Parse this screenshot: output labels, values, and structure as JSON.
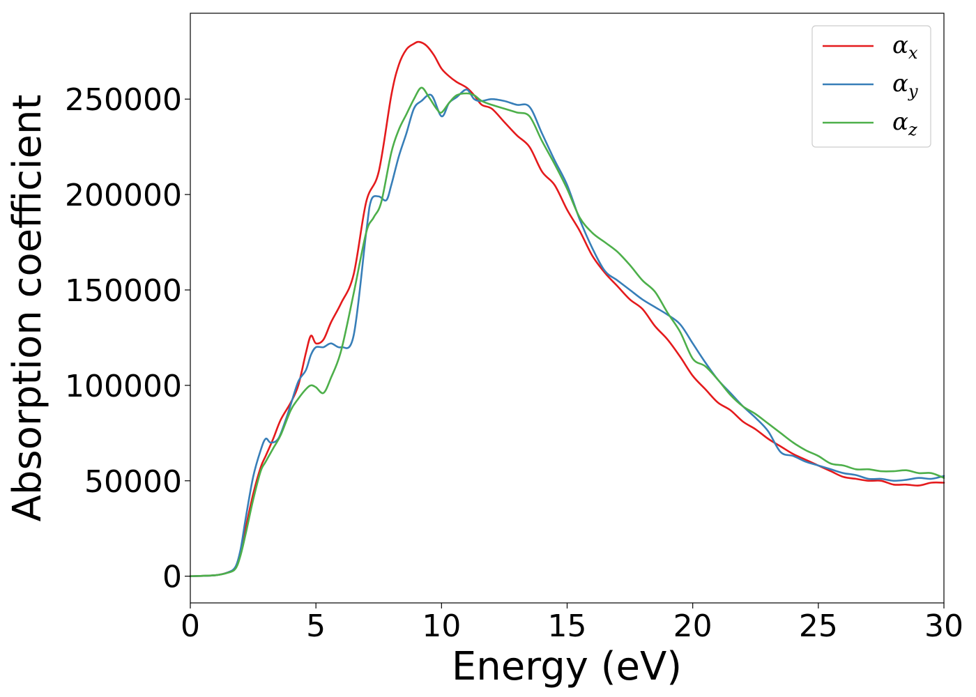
{
  "chart_data": {
    "type": "line",
    "title": "",
    "xlabel": "Energy (eV)",
    "ylabel": "Absorption coefficient",
    "xlim": [
      0,
      30
    ],
    "ylim": [
      -14000,
      295000
    ],
    "xticks": [
      0,
      5,
      10,
      15,
      20,
      25,
      30
    ],
    "xtick_labels": [
      "0",
      "5",
      "10",
      "15",
      "20",
      "25",
      "30"
    ],
    "yticks": [
      0,
      50000,
      100000,
      150000,
      200000,
      250000
    ],
    "ytick_labels": [
      "0",
      "50000",
      "100000",
      "150000",
      "200000",
      "250000"
    ],
    "grid": false,
    "legend_position": "top-right",
    "series": [
      {
        "name": "α",
        "subscript": "x",
        "color": "#e41a1c",
        "x": [
          0,
          1,
          1.5,
          1.8,
          2.0,
          2.2,
          2.5,
          2.8,
          3.0,
          3.3,
          3.6,
          4.0,
          4.3,
          4.6,
          4.8,
          5.0,
          5.3,
          5.6,
          6.0,
          6.5,
          7.0,
          7.5,
          8.0,
          8.3,
          8.6,
          8.9,
          9.1,
          9.4,
          9.7,
          10.0,
          10.3,
          10.6,
          11.0,
          11.3,
          11.6,
          12.0,
          12.5,
          13.0,
          13.5,
          14.0,
          14.5,
          15.0,
          15.5,
          16.0,
          16.5,
          17.0,
          17.5,
          18.0,
          18.5,
          19.0,
          19.5,
          20.0,
          20.5,
          21.0,
          21.5,
          22.0,
          22.5,
          23.0,
          23.5,
          24.0,
          24.5,
          25.0,
          25.5,
          26.0,
          26.5,
          27.0,
          27.5,
          28.0,
          28.5,
          29.0,
          29.5,
          30.0
        ],
        "values": [
          0,
          500,
          2000,
          4500,
          12000,
          25000,
          43000,
          57000,
          63000,
          72000,
          82000,
          91000,
          100000,
          117000,
          126000,
          122000,
          124000,
          133000,
          143000,
          158000,
          196000,
          212000,
          252000,
          268000,
          276000,
          279000,
          280000,
          278000,
          273000,
          266000,
          262000,
          259000,
          256000,
          252000,
          247000,
          245000,
          238000,
          231000,
          225000,
          212000,
          205000,
          192000,
          181000,
          168000,
          159000,
          152000,
          145000,
          140000,
          131000,
          124000,
          115000,
          105000,
          98000,
          91000,
          87000,
          81000,
          77000,
          72000,
          68000,
          64000,
          61000,
          58000,
          55000,
          52000,
          51000,
          50000,
          50000,
          48000,
          48000,
          47500,
          49000,
          49000
        ]
      },
      {
        "name": "α",
        "subscript": "y",
        "color": "#377eb8",
        "x": [
          0,
          1,
          1.5,
          1.8,
          2.0,
          2.2,
          2.5,
          2.8,
          3.0,
          3.2,
          3.5,
          3.8,
          4.0,
          4.3,
          4.6,
          4.8,
          5.0,
          5.3,
          5.6,
          6.0,
          6.5,
          7.0,
          7.2,
          7.5,
          7.8,
          8.0,
          8.3,
          8.6,
          8.9,
          9.2,
          9.6,
          10.0,
          10.3,
          10.6,
          11.0,
          11.3,
          11.6,
          12.0,
          12.5,
          13.0,
          13.5,
          14.0,
          14.5,
          15.0,
          15.5,
          16.0,
          16.5,
          17.0,
          17.5,
          18.0,
          18.5,
          19.0,
          19.5,
          20.0,
          20.5,
          21.0,
          21.5,
          22.0,
          22.5,
          23.0,
          23.5,
          24.0,
          24.5,
          25.0,
          25.5,
          26.0,
          26.5,
          27.0,
          27.5,
          28.0,
          28.5,
          29.0,
          29.5,
          30.0
        ],
        "values": [
          0,
          500,
          2000,
          5000,
          14000,
          30000,
          52000,
          66000,
          72000,
          70000,
          72000,
          82000,
          90000,
          102000,
          108000,
          116000,
          120000,
          120000,
          122000,
          120000,
          126000,
          180000,
          197000,
          199000,
          197000,
          205000,
          220000,
          232000,
          245000,
          249000,
          252000,
          241000,
          248000,
          251000,
          255000,
          250000,
          249000,
          250000,
          249000,
          247000,
          246000,
          232000,
          218000,
          205000,
          187000,
          172000,
          160000,
          155000,
          150000,
          145000,
          141000,
          137000,
          132000,
          122000,
          112000,
          103000,
          96000,
          89000,
          83000,
          76000,
          65000,
          63000,
          60000,
          58000,
          56000,
          54000,
          53000,
          51000,
          51000,
          50000,
          50500,
          51500,
          51000,
          52500
        ]
      },
      {
        "name": "α",
        "subscript": "z",
        "color": "#4daf4a",
        "x": [
          0,
          1,
          1.5,
          1.8,
          2.0,
          2.2,
          2.5,
          2.8,
          3.0,
          3.3,
          3.6,
          4.0,
          4.3,
          4.6,
          4.8,
          5.0,
          5.3,
          5.6,
          6.0,
          6.5,
          7.0,
          7.3,
          7.6,
          8.0,
          8.3,
          8.6,
          8.9,
          9.2,
          9.5,
          9.8,
          10.0,
          10.3,
          10.6,
          11.0,
          11.3,
          11.6,
          12.0,
          12.5,
          13.0,
          13.5,
          14.0,
          14.5,
          15.0,
          15.5,
          16.0,
          16.5,
          17.0,
          17.5,
          18.0,
          18.5,
          19.0,
          19.5,
          20.0,
          20.5,
          21.0,
          21.5,
          22.0,
          22.5,
          23.0,
          23.5,
          24.0,
          24.5,
          25.0,
          25.5,
          26.0,
          26.5,
          27.0,
          27.5,
          28.0,
          28.5,
          29.0,
          29.5,
          30.0
        ],
        "values": [
          0,
          500,
          1800,
          4000,
          11000,
          22000,
          40000,
          55000,
          60000,
          67000,
          74000,
          87000,
          93000,
          98000,
          100000,
          99000,
          96000,
          104000,
          118000,
          148000,
          180000,
          188000,
          196000,
          222000,
          234000,
          242000,
          250000,
          256000,
          251000,
          245000,
          243000,
          248000,
          252000,
          253000,
          252000,
          249000,
          247000,
          245000,
          243000,
          241000,
          228000,
          216000,
          203000,
          188000,
          180000,
          175000,
          170000,
          163000,
          155000,
          149000,
          138000,
          128000,
          114000,
          110000,
          103000,
          95000,
          89000,
          85000,
          80000,
          75000,
          70000,
          66000,
          63000,
          59000,
          58000,
          56000,
          56000,
          55000,
          55000,
          55500,
          54000,
          54000,
          51500
        ]
      }
    ]
  }
}
